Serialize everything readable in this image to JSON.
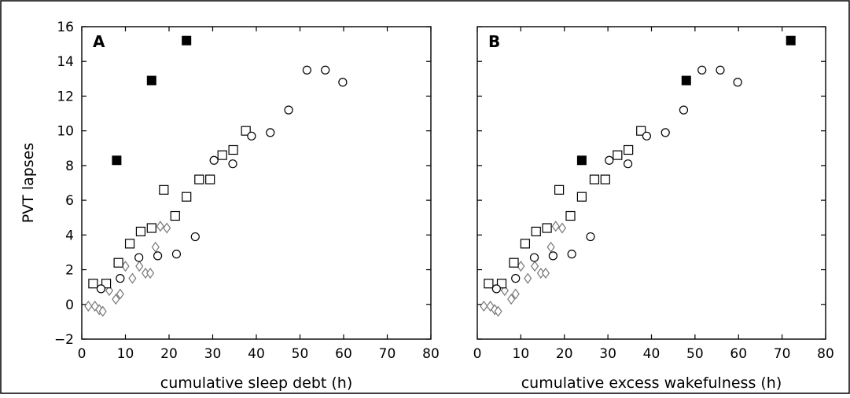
{
  "chart_data": [
    {
      "type": "scatter",
      "panel_label": "A",
      "xlabel": "cumulative sleep debt (h)",
      "ylabel": "PVT lapses",
      "xlim": [
        0,
        80
      ],
      "ylim": [
        -2,
        16
      ],
      "xticks": [
        "0",
        "10",
        "20",
        "30",
        "40",
        "50",
        "60",
        "70",
        "80"
      ],
      "yticks": [
        "16",
        "14",
        "12",
        "10",
        "8",
        "6",
        "4",
        "2",
        "0",
        "−2"
      ],
      "series": [
        {
          "marker": "diamond-open",
          "color": "#777777",
          "points": [
            [
              1.5,
              -0.1
            ],
            [
              3.0,
              -0.1
            ],
            [
              4.0,
              -0.3
            ],
            [
              4.8,
              -0.4
            ],
            [
              6.3,
              0.8
            ],
            [
              7.8,
              0.3
            ],
            [
              8.8,
              0.6
            ],
            [
              10.0,
              2.2
            ],
            [
              11.6,
              1.5
            ],
            [
              13.2,
              2.2
            ],
            [
              14.6,
              1.8
            ],
            [
              15.7,
              1.8
            ],
            [
              16.9,
              3.3
            ],
            [
              18.0,
              4.5
            ],
            [
              19.5,
              4.4
            ]
          ]
        },
        {
          "marker": "square-open",
          "color": "#000000",
          "points": [
            [
              2.6,
              1.2
            ],
            [
              5.6,
              1.2
            ],
            [
              8.4,
              2.4
            ],
            [
              11.0,
              3.5
            ],
            [
              13.5,
              4.2
            ],
            [
              16.0,
              4.4
            ],
            [
              18.8,
              6.6
            ],
            [
              21.4,
              5.1
            ],
            [
              24.0,
              6.2
            ],
            [
              26.9,
              7.2
            ],
            [
              29.4,
              7.2
            ],
            [
              32.2,
              8.6
            ],
            [
              34.7,
              8.9
            ],
            [
              37.6,
              10.0
            ]
          ]
        },
        {
          "marker": "circle-open",
          "color": "#000000",
          "points": [
            [
              4.4,
              0.9
            ],
            [
              8.8,
              1.5
            ],
            [
              13.1,
              2.7
            ],
            [
              17.4,
              2.8
            ],
            [
              21.7,
              2.9
            ],
            [
              26.0,
              3.9
            ],
            [
              30.3,
              8.3
            ],
            [
              34.6,
              8.1
            ],
            [
              38.9,
              9.7
            ],
            [
              43.2,
              9.9
            ],
            [
              47.4,
              11.2
            ],
            [
              51.6,
              13.5
            ],
            [
              55.8,
              13.5
            ],
            [
              59.8,
              12.8
            ]
          ]
        },
        {
          "marker": "square-filled",
          "color": "#000000",
          "points": [
            [
              8.0,
              8.3
            ],
            [
              16.0,
              12.9
            ],
            [
              24.0,
              15.2
            ]
          ]
        }
      ]
    },
    {
      "type": "scatter",
      "panel_label": "B",
      "xlabel": "cumulative excess wakefulness (h)",
      "ylabel": "",
      "xlim": [
        0,
        80
      ],
      "ylim": [
        -2,
        16
      ],
      "xticks": [
        "0",
        "10",
        "20",
        "30",
        "40",
        "50",
        "60",
        "70",
        "80"
      ],
      "yticks": [],
      "series": [
        {
          "marker": "diamond-open",
          "color": "#777777",
          "points": [
            [
              1.5,
              -0.1
            ],
            [
              3.0,
              -0.1
            ],
            [
              4.0,
              -0.3
            ],
            [
              4.8,
              -0.4
            ],
            [
              6.3,
              0.8
            ],
            [
              7.8,
              0.3
            ],
            [
              8.8,
              0.6
            ],
            [
              10.0,
              2.2
            ],
            [
              11.6,
              1.5
            ],
            [
              13.2,
              2.2
            ],
            [
              14.6,
              1.8
            ],
            [
              15.7,
              1.8
            ],
            [
              16.9,
              3.3
            ],
            [
              18.0,
              4.5
            ],
            [
              19.5,
              4.4
            ]
          ]
        },
        {
          "marker": "square-open",
          "color": "#000000",
          "points": [
            [
              2.6,
              1.2
            ],
            [
              5.6,
              1.2
            ],
            [
              8.4,
              2.4
            ],
            [
              11.0,
              3.5
            ],
            [
              13.5,
              4.2
            ],
            [
              16.0,
              4.4
            ],
            [
              18.8,
              6.6
            ],
            [
              21.4,
              5.1
            ],
            [
              24.0,
              6.2
            ],
            [
              26.9,
              7.2
            ],
            [
              29.4,
              7.2
            ],
            [
              32.2,
              8.6
            ],
            [
              34.7,
              8.9
            ],
            [
              37.6,
              10.0
            ]
          ]
        },
        {
          "marker": "circle-open",
          "color": "#000000",
          "points": [
            [
              4.4,
              0.9
            ],
            [
              8.8,
              1.5
            ],
            [
              13.1,
              2.7
            ],
            [
              17.4,
              2.8
            ],
            [
              21.7,
              2.9
            ],
            [
              26.0,
              3.9
            ],
            [
              30.3,
              8.3
            ],
            [
              34.6,
              8.1
            ],
            [
              38.9,
              9.7
            ],
            [
              43.2,
              9.9
            ],
            [
              47.4,
              11.2
            ],
            [
              51.6,
              13.5
            ],
            [
              55.8,
              13.5
            ],
            [
              59.8,
              12.8
            ]
          ]
        },
        {
          "marker": "square-filled",
          "color": "#000000",
          "points": [
            [
              24.0,
              8.3
            ],
            [
              48.0,
              12.9
            ],
            [
              72.0,
              15.2
            ]
          ]
        }
      ]
    }
  ]
}
